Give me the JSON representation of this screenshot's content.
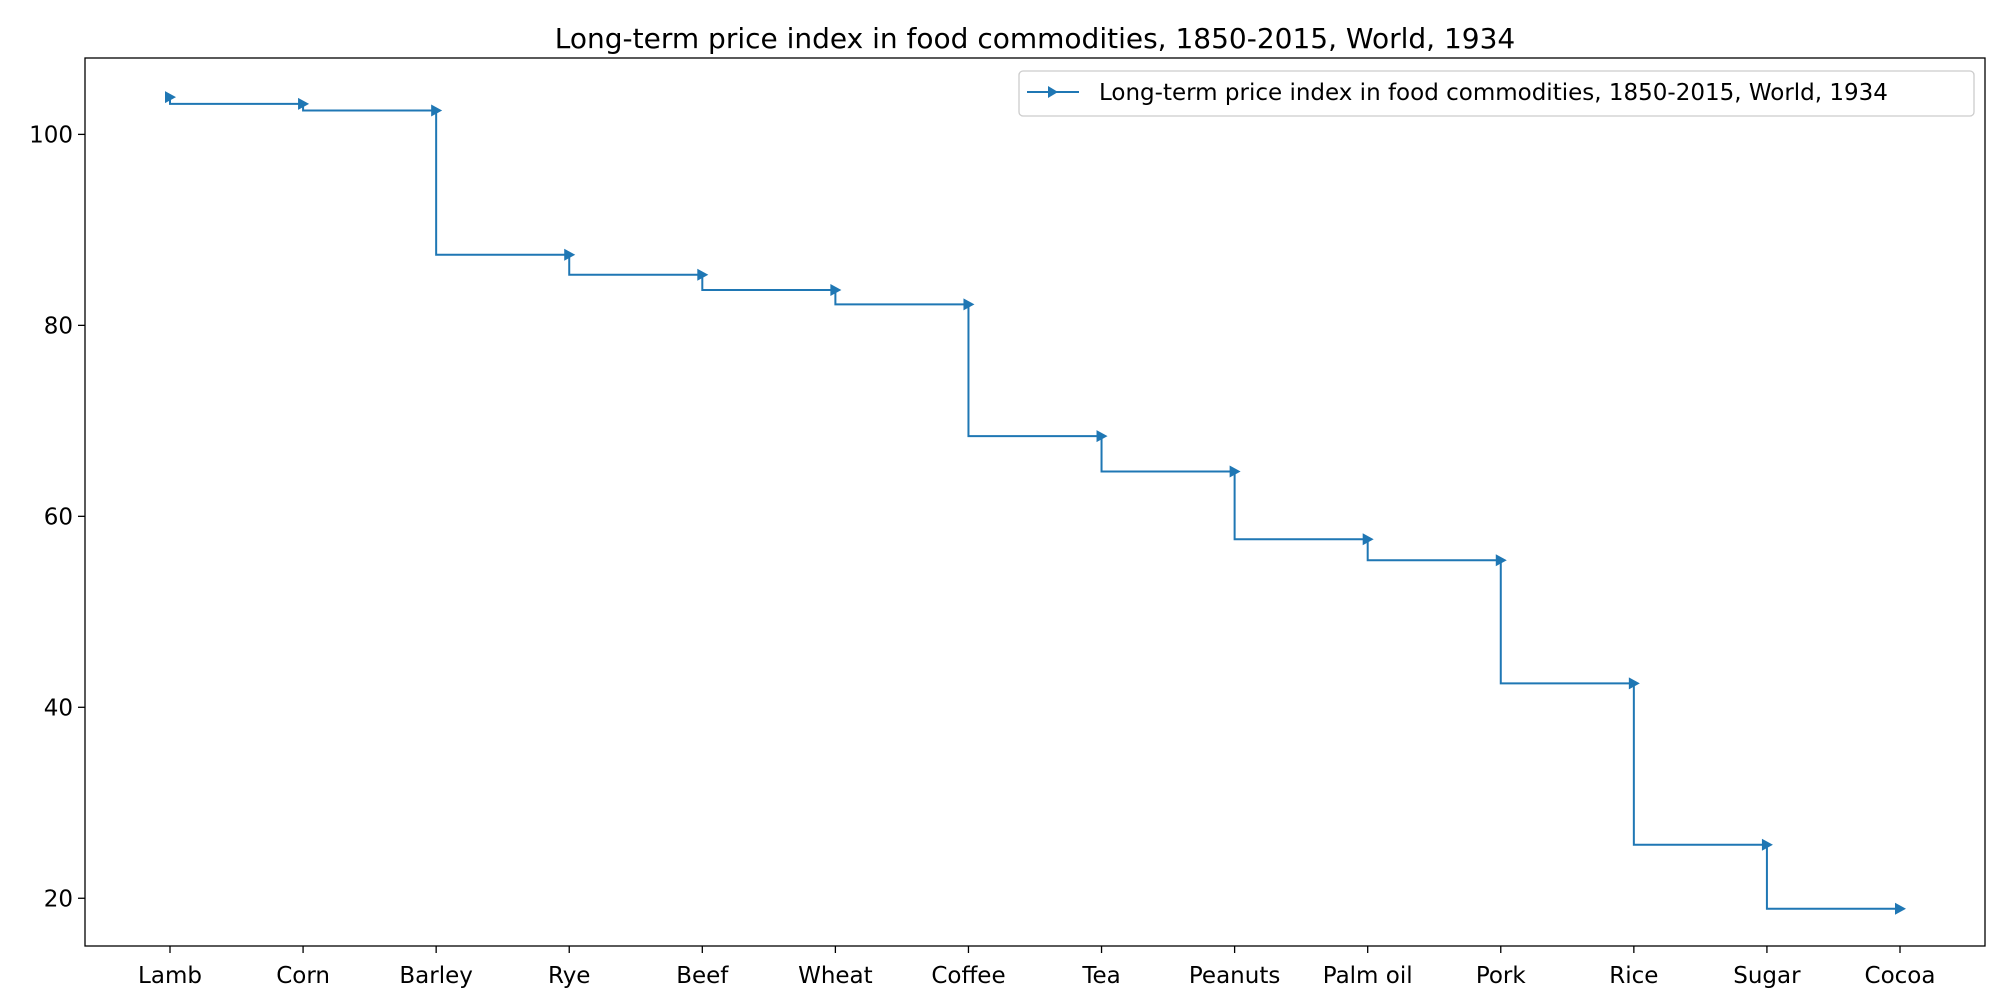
{
  "chart_data": {
    "type": "line",
    "style": "step-post",
    "title": "Long-term price index in food commodities, 1850-2015, World, 1934",
    "xlabel": "",
    "ylabel": "",
    "categories": [
      "Lamb",
      "Corn",
      "Barley",
      "Rye",
      "Beef",
      "Wheat",
      "Coffee",
      "Tea",
      "Peanuts",
      "Palm oil",
      "Pork",
      "Rice",
      "Sugar",
      "Cocoa"
    ],
    "series": [
      {
        "name": "Long-term price index in food commodities, 1850-2015, World, 1934",
        "values": [
          103.9,
          103.2,
          102.5,
          87.4,
          85.3,
          83.7,
          82.2,
          68.4,
          64.7,
          57.6,
          55.4,
          42.5,
          25.6,
          18.9
        ],
        "color": "#1f77b4",
        "marker": "triangle-right"
      }
    ],
    "yticks": [
      20,
      40,
      60,
      80,
      100
    ],
    "ylim": [
      15,
      108
    ],
    "grid": false,
    "legend_position": "top-right"
  }
}
